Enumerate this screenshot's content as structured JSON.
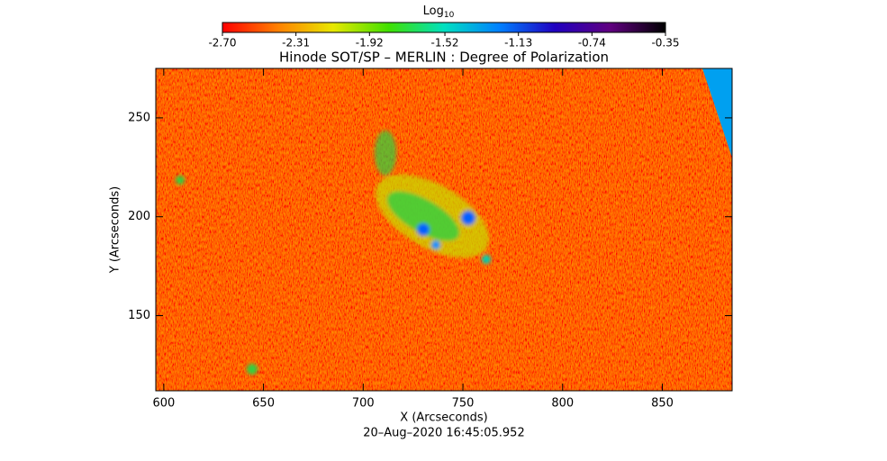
{
  "chart_data": {
    "type": "image",
    "title": "Hinode SOT/SP – MERLIN : Degree of Polarization",
    "xlabel": "X (Arcseconds)",
    "ylabel": "Y (Arcseconds)",
    "footer": "20–Aug–2020 16:45:05.952",
    "xlim": [
      596,
      885
    ],
    "xticks": [
      600,
      650,
      700,
      750,
      800,
      850
    ],
    "ylim": [
      112,
      275
    ],
    "yticks": [
      150,
      200,
      250
    ],
    "colorbar": {
      "label": "Log",
      "label_sub": "10",
      "lim": [
        -2.7,
        -0.35
      ],
      "ticks": [
        {
          "value": -2.7,
          "label": "-2.70"
        },
        {
          "value": -2.31,
          "label": "-2.31"
        },
        {
          "value": -1.92,
          "label": "-1.92"
        },
        {
          "value": -1.52,
          "label": "-1.52"
        },
        {
          "value": -1.13,
          "label": "-1.13"
        },
        {
          "value": -0.74,
          "label": "-0.74"
        },
        {
          "value": -0.35,
          "label": "-0.35"
        }
      ],
      "colors": [
        "#ff0000",
        "#ff8000",
        "#e8e800",
        "#40e000",
        "#00e0c0",
        "#0080ff",
        "#2000c0",
        "#600080",
        "#000000"
      ]
    }
  }
}
